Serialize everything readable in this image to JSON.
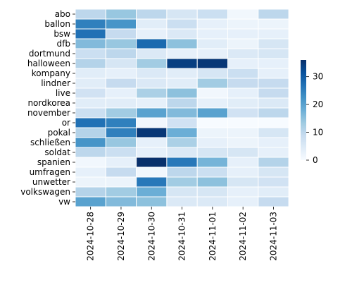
{
  "chart_data": {
    "type": "heatmap",
    "title": "",
    "xlabel": "",
    "ylabel": "",
    "x_categories": [
      "2024-10-28",
      "2024-10-29",
      "2024-10-30",
      "2024-10-31",
      "2024-11-01",
      "2024-11-02",
      "2024-11-03"
    ],
    "y_categories": [
      "abo",
      "ballon",
      "bsw",
      "dfb",
      "dortmund",
      "halloween",
      "kompany",
      "lindner",
      "live",
      "nordkorea",
      "november",
      "or",
      "pokal",
      "schließen",
      "soldat",
      "spanien",
      "umfragen",
      "unwetter",
      "volkswagen",
      "vw"
    ],
    "values": [
      [
        10,
        14,
        10,
        6,
        8,
        1,
        10
      ],
      [
        25,
        22,
        4,
        8,
        3,
        2,
        2
      ],
      [
        27,
        9,
        3,
        5,
        3,
        3,
        3
      ],
      [
        16,
        14,
        28,
        15,
        4,
        2,
        6
      ],
      [
        8,
        10,
        5,
        3,
        3,
        5,
        6
      ],
      [
        11,
        6,
        13,
        34,
        35,
        3,
        3
      ],
      [
        4,
        3,
        5,
        4,
        6,
        8,
        3
      ],
      [
        4,
        9,
        5,
        4,
        13,
        9,
        9
      ],
      [
        7,
        3,
        12,
        15,
        1,
        3,
        9
      ],
      [
        4,
        4,
        3,
        10,
        3,
        4,
        5
      ],
      [
        8,
        13,
        20,
        16,
        20,
        7,
        10
      ],
      [
        27,
        25,
        1,
        7,
        0,
        0,
        0
      ],
      [
        11,
        25,
        35,
        18,
        2,
        2,
        6
      ],
      [
        22,
        14,
        3,
        12,
        3,
        2,
        3
      ],
      [
        10,
        8,
        3,
        5,
        6,
        6,
        3
      ],
      [
        1,
        3,
        36,
        26,
        17,
        3,
        11
      ],
      [
        3,
        9,
        1,
        10,
        8,
        3,
        6
      ],
      [
        2,
        2,
        26,
        13,
        15,
        6,
        7
      ],
      [
        11,
        13,
        18,
        6,
        6,
        3,
        4
      ],
      [
        20,
        16,
        15,
        5,
        5,
        3,
        9
      ]
    ],
    "colorbar": {
      "min": 0,
      "max": 36,
      "ticks": [
        0,
        10,
        20,
        30
      ],
      "colormap": "Blues"
    },
    "colors": {
      "cell_border": "#ffffff"
    }
  }
}
